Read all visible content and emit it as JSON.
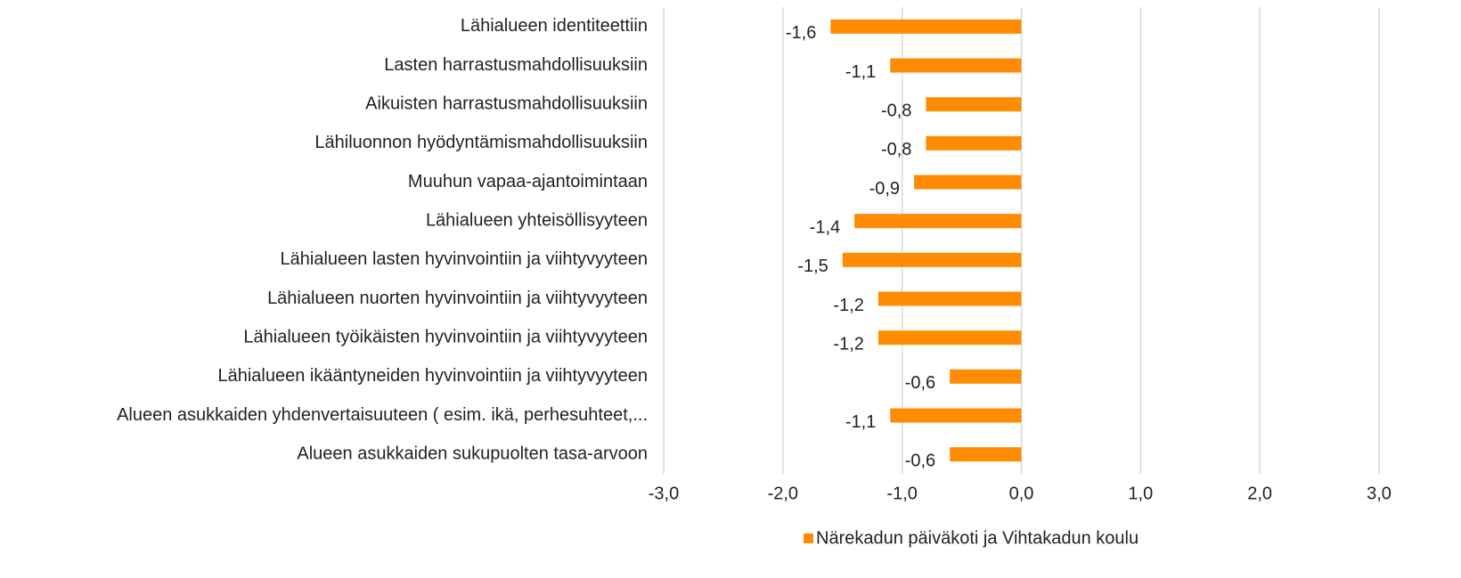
{
  "chart_data": {
    "type": "barh",
    "categories": [
      "Lähialueen identiteettiin",
      "Lasten harrastusmahdollisuuksiin",
      "Aikuisten harrastusmahdollisuuksiin",
      "Lähiluonnon hyödyntämismahdollisuuksiin",
      "Muuhun vapaa-ajantoimintaan",
      "Lähialueen yhteisöllisyyteen",
      "Lähialueen lasten hyvinvointiin ja viihtyvyyteen",
      "Lähialueen nuorten hyvinvointiin ja viihtyvyyteen",
      "Lähialueen työikäisten hyvinvointiin ja viihtyvyyteen",
      "Lähialueen ikääntyneiden hyvinvointiin ja viihtyvyyteen",
      "Alueen asukkaiden yhdenvertaisuuteen ( esim. ikä, perhesuhteet,...",
      "Alueen asukkaiden sukupuolten tasa-arvoon"
    ],
    "series": [
      {
        "name": "Närekadun päiväkoti ja Vihtakadun koulu",
        "color": "#ff8c00",
        "values": [
          -1.6,
          -1.1,
          -0.8,
          -0.8,
          -0.9,
          -1.4,
          -1.5,
          -1.2,
          -1.2,
          -0.6,
          -1.1,
          -0.6
        ],
        "value_labels": [
          "-1,6",
          "-1,1",
          "-0,8",
          "-0,8",
          "-0,9",
          "-1,4",
          "-1,5",
          "-1,2",
          "-1,2",
          "-0,6",
          "-1,1",
          "-0,6"
        ]
      }
    ],
    "xlim": [
      -3,
      3
    ],
    "xticks": [
      {
        "value": -3,
        "label": "-3,0"
      },
      {
        "value": -2,
        "label": "-2,0"
      },
      {
        "value": -1,
        "label": "-1,0"
      },
      {
        "value": 0,
        "label": "0,0"
      },
      {
        "value": 1,
        "label": "1,0"
      },
      {
        "value": 2,
        "label": "2,0"
      },
      {
        "value": 3,
        "label": "3,0"
      }
    ],
    "grid": true,
    "legend": "bottom"
  }
}
